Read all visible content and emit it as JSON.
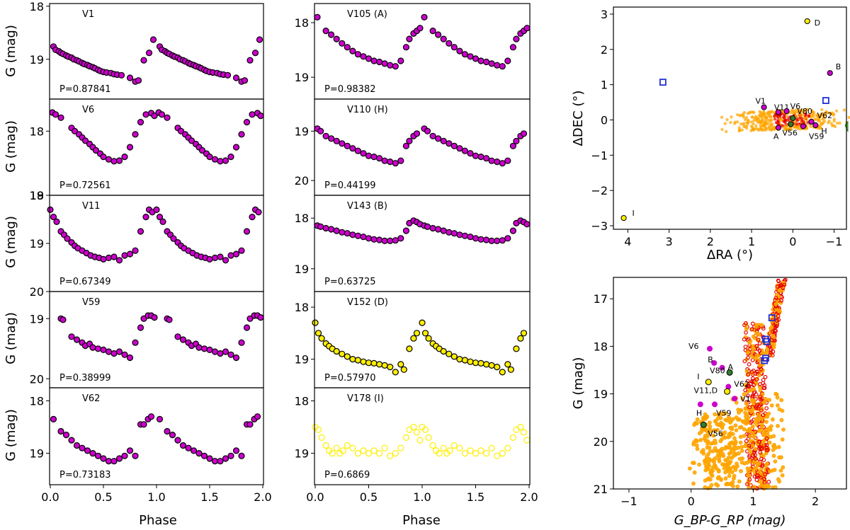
{
  "figure": {
    "y_label": "G (mag)",
    "phase_label": "Phase",
    "phase_ticks": [
      "0.0",
      "0.5",
      "1.0",
      "1.5",
      "2.0"
    ],
    "colors": {
      "member": "#cc00cc",
      "nonmember": "#ffee00",
      "nonmember_open": "#ffee00",
      "stroke": "#000000",
      "field": "#ffa500",
      "cluster": "#e60000",
      "candidate": "#1f2fd6",
      "green": "#2f7d2f"
    }
  },
  "chart_data": [
    {
      "type": "scatter",
      "panel": "light-curve",
      "name": "V1",
      "period_label": "P=0.87841",
      "color": "member",
      "ylim": [
        19.75,
        17.95
      ],
      "ytick_labels": [
        "18",
        "19"
      ],
      "x": [
        0.03,
        0.05,
        0.08,
        0.1,
        0.12,
        0.15,
        0.17,
        0.2,
        0.22,
        0.25,
        0.27,
        0.3,
        0.32,
        0.35,
        0.37,
        0.4,
        0.42,
        0.45,
        0.47,
        0.5,
        0.53,
        0.57,
        0.6,
        0.63,
        0.67,
        0.75,
        0.8,
        0.83,
        0.88,
        0.93,
        0.97
      ],
      "y": [
        18.76,
        18.82,
        18.85,
        18.88,
        18.9,
        18.93,
        18.95,
        18.97,
        19.0,
        19.02,
        19.04,
        19.07,
        19.09,
        19.11,
        19.13,
        19.15,
        19.17,
        19.2,
        19.22,
        19.24,
        19.25,
        19.26,
        19.28,
        19.29,
        19.3,
        19.35,
        19.42,
        19.4,
        19.02,
        18.88,
        18.63
      ]
    },
    {
      "type": "scatter",
      "panel": "light-curve",
      "name": "V6",
      "period_label": "P=0.72561",
      "color": "member",
      "ylim": [
        19.0,
        17.5
      ],
      "ytick_labels": [
        "18",
        "19"
      ],
      "x": [
        0.02,
        0.05,
        0.1,
        0.2,
        0.23,
        0.27,
        0.3,
        0.33,
        0.37,
        0.4,
        0.43,
        0.47,
        0.5,
        0.55,
        0.6,
        0.65,
        0.7,
        0.75,
        0.8,
        0.85,
        0.9,
        0.95,
        0.98
      ],
      "y": [
        17.71,
        17.74,
        17.79,
        17.95,
        18.0,
        18.05,
        18.1,
        18.15,
        18.2,
        18.25,
        18.3,
        18.35,
        18.4,
        18.44,
        18.47,
        18.46,
        18.4,
        18.25,
        18.05,
        17.86,
        17.74,
        17.72,
        17.76
      ]
    },
    {
      "type": "scatter",
      "panel": "light-curve",
      "name": "V11",
      "period_label": "P=0.67349",
      "color": "member",
      "ylim": [
        20.0,
        18.0
      ],
      "ytick_labels": [
        "18",
        "19",
        "20"
      ],
      "x": [
        0.0,
        0.03,
        0.06,
        0.1,
        0.13,
        0.16,
        0.2,
        0.23,
        0.26,
        0.3,
        0.34,
        0.38,
        0.42,
        0.46,
        0.5,
        0.55,
        0.6,
        0.65,
        0.7,
        0.75,
        0.8,
        0.85,
        0.9,
        0.93,
        0.96
      ],
      "y": [
        18.3,
        18.45,
        18.55,
        18.75,
        18.82,
        18.9,
        18.98,
        19.05,
        19.1,
        19.15,
        19.2,
        19.25,
        19.28,
        19.3,
        19.33,
        19.3,
        19.28,
        19.35,
        19.25,
        19.22,
        19.15,
        18.75,
        18.45,
        18.3,
        18.35
      ]
    },
    {
      "type": "scatter",
      "panel": "light-curve",
      "name": "V59",
      "period_label": "P=0.38999",
      "color": "member",
      "ylim": [
        20.15,
        18.55
      ],
      "ytick_labels": [
        "19",
        "20"
      ],
      "x": [
        0.1,
        0.12,
        0.2,
        0.25,
        0.3,
        0.33,
        0.37,
        0.4,
        0.45,
        0.5,
        0.55,
        0.6,
        0.65,
        0.7,
        0.75,
        0.8,
        0.85,
        0.88,
        0.92,
        0.95,
        0.98
      ],
      "y": [
        19.0,
        19.02,
        19.3,
        19.35,
        19.4,
        19.45,
        19.42,
        19.48,
        19.5,
        19.52,
        19.55,
        19.58,
        19.55,
        19.6,
        19.65,
        19.4,
        19.15,
        19.0,
        18.95,
        18.95,
        18.98
      ]
    },
    {
      "type": "scatter",
      "panel": "light-curve",
      "name": "V62",
      "period_label": "P=0.73183",
      "color": "member",
      "ylim": [
        19.6,
        17.75
      ],
      "ytick_labels": [
        "18",
        "19"
      ],
      "x": [
        0.03,
        0.1,
        0.15,
        0.2,
        0.25,
        0.3,
        0.35,
        0.4,
        0.45,
        0.5,
        0.55,
        0.6,
        0.65,
        0.7,
        0.75,
        0.8,
        0.85,
        0.88,
        0.92,
        0.95
      ],
      "y": [
        18.35,
        18.58,
        18.65,
        18.75,
        18.85,
        18.9,
        18.95,
        19.0,
        19.05,
        19.1,
        19.15,
        19.15,
        19.1,
        19.05,
        18.95,
        19.05,
        18.45,
        18.45,
        18.35,
        18.3
      ]
    },
    {
      "type": "scatter",
      "panel": "light-curve",
      "name": "V105 (A)",
      "period_label": "P=0.98382",
      "color": "member",
      "ylim": [
        19.4,
        17.65
      ],
      "ytick_labels": [
        "18",
        "19"
      ],
      "x": [
        0.02,
        0.1,
        0.15,
        0.2,
        0.25,
        0.3,
        0.35,
        0.4,
        0.45,
        0.5,
        0.55,
        0.6,
        0.65,
        0.7,
        0.75,
        0.8,
        0.85,
        0.88,
        0.92,
        0.95,
        0.98
      ],
      "y": [
        17.9,
        18.15,
        18.22,
        18.3,
        18.38,
        18.45,
        18.52,
        18.58,
        18.62,
        18.66,
        18.7,
        18.72,
        18.75,
        18.78,
        18.8,
        18.7,
        18.45,
        18.3,
        18.2,
        18.15,
        18.1
      ]
    },
    {
      "type": "scatter",
      "panel": "light-curve",
      "name": "V110 (H)",
      "period_label": "P=0.44199",
      "color": "member",
      "ylim": [
        20.3,
        18.35
      ],
      "ytick_labels": [
        "19",
        "20"
      ],
      "x": [
        0.02,
        0.05,
        0.1,
        0.15,
        0.2,
        0.25,
        0.3,
        0.35,
        0.4,
        0.45,
        0.5,
        0.55,
        0.6,
        0.65,
        0.7,
        0.75,
        0.8,
        0.85,
        0.88,
        0.92,
        0.95
      ],
      "y": [
        18.95,
        19.0,
        19.1,
        19.15,
        19.2,
        19.25,
        19.3,
        19.35,
        19.4,
        19.45,
        19.5,
        19.52,
        19.55,
        19.6,
        19.62,
        19.65,
        19.6,
        19.3,
        19.2,
        19.1,
        19.05
      ]
    },
    {
      "type": "scatter",
      "panel": "light-curve",
      "name": "V143 (B)",
      "period_label": "P=0.63725",
      "color": "member",
      "ylim": [
        19.45,
        17.55
      ],
      "ytick_labels": [
        "18",
        "19"
      ],
      "x": [
        0.02,
        0.05,
        0.1,
        0.15,
        0.2,
        0.25,
        0.3,
        0.35,
        0.4,
        0.45,
        0.5,
        0.55,
        0.6,
        0.65,
        0.7,
        0.75,
        0.8,
        0.85,
        0.88,
        0.92,
        0.95,
        0.98
      ],
      "y": [
        18.15,
        18.17,
        18.2,
        18.22,
        18.25,
        18.28,
        18.3,
        18.33,
        18.35,
        18.37,
        18.4,
        18.42,
        18.43,
        18.45,
        18.45,
        18.44,
        18.4,
        18.25,
        18.1,
        18.05,
        18.08,
        18.12
      ]
    },
    {
      "type": "scatter",
      "panel": "light-curve",
      "name": "V152 (D)",
      "period_label": "P=0.57970",
      "color": "nonmember",
      "ylim": [
        19.55,
        17.7
      ],
      "ytick_labels": [
        "18",
        "19"
      ],
      "x": [
        0.0,
        0.03,
        0.06,
        0.1,
        0.13,
        0.16,
        0.2,
        0.25,
        0.3,
        0.35,
        0.4,
        0.45,
        0.5,
        0.55,
        0.6,
        0.65,
        0.7,
        0.75,
        0.8,
        0.83,
        0.88,
        0.92,
        0.95
      ],
      "y": [
        18.3,
        18.5,
        18.6,
        18.7,
        18.75,
        18.8,
        18.85,
        18.9,
        18.95,
        19.0,
        19.02,
        19.05,
        19.07,
        19.08,
        19.1,
        19.12,
        19.15,
        19.25,
        19.1,
        19.2,
        18.8,
        18.6,
        18.5
      ]
    },
    {
      "type": "scatter",
      "panel": "light-curve",
      "name": "V178 (I)",
      "period_label": "P=0.6869",
      "color": "nonmember_open",
      "ylim": [
        19.6,
        17.75
      ],
      "ytick_labels": [
        "18",
        "19"
      ],
      "x": [
        0.0,
        0.03,
        0.06,
        0.1,
        0.13,
        0.16,
        0.2,
        0.23,
        0.26,
        0.3,
        0.35,
        0.4,
        0.45,
        0.5,
        0.55,
        0.6,
        0.65,
        0.7,
        0.75,
        0.8,
        0.85,
        0.88,
        0.92,
        0.95,
        0.98
      ],
      "y": [
        18.5,
        18.55,
        18.7,
        18.85,
        18.95,
        19.0,
        18.9,
        19.0,
        18.95,
        18.85,
        18.9,
        19.0,
        18.95,
        19.0,
        18.95,
        19.0,
        18.9,
        19.05,
        19.0,
        18.9,
        18.7,
        18.55,
        18.5,
        18.6,
        18.75
      ]
    },
    {
      "type": "scatter",
      "panel": "sky-map",
      "title": "",
      "xlabel": "ΔRA (°)",
      "ylabel": "ΔDEC (°)",
      "xlim": [
        4.35,
        -1.3
      ],
      "ylim": [
        -3.1,
        3.2
      ],
      "xtick_labels": [
        "4",
        "3",
        "2",
        "1",
        "0",
        "−1"
      ],
      "ytick_labels": [
        "−3",
        "−2",
        "−1",
        "0",
        "1",
        "2",
        "3"
      ],
      "labeled_stars": [
        {
          "label": "V1",
          "x": 0.7,
          "y": 0.36,
          "color": "member"
        },
        {
          "label": "V11",
          "x": 0.35,
          "y": 0.22,
          "color": "member"
        },
        {
          "label": "V6",
          "x": 0.15,
          "y": 0.25,
          "color": "member"
        },
        {
          "label": "V80",
          "x": 0.0,
          "y": 0.05,
          "color": "green"
        },
        {
          "label": "V62",
          "x": -0.45,
          "y": -0.05,
          "color": "member"
        },
        {
          "label": "A",
          "x": 0.35,
          "y": -0.22,
          "color": "member"
        },
        {
          "label": "V56",
          "x": 0.05,
          "y": -0.12,
          "color": "green"
        },
        {
          "label": "V59",
          "x": -0.25,
          "y": -0.18,
          "color": "member"
        },
        {
          "label": "H",
          "x": -0.55,
          "y": -0.15,
          "color": "member"
        },
        {
          "label": "B",
          "x": -0.9,
          "y": 1.33,
          "color": "member"
        },
        {
          "label": "D",
          "x": -0.35,
          "y": 2.8,
          "color": "nonmember"
        },
        {
          "label": "I",
          "x": 4.1,
          "y": -2.78,
          "color": "nonmember"
        }
      ],
      "candidates": [
        {
          "x": 3.15,
          "y": 1.07
        },
        {
          "x": -0.8,
          "y": 0.55
        }
      ]
    },
    {
      "type": "scatter",
      "panel": "cmd",
      "title": "",
      "xlabel": "G_BP-G_RP (mag)",
      "ylabel": "G (mag)",
      "xlim": [
        -1.25,
        2.5
      ],
      "ylim": [
        21.0,
        16.55
      ],
      "xtick_labels": [
        "−1",
        "0",
        "1",
        "2"
      ],
      "ytick_labels": [
        "17",
        "18",
        "19",
        "20",
        "21"
      ],
      "labeled_stars": [
        {
          "label": "V6",
          "x": 0.3,
          "y": 18.05,
          "color": "member"
        },
        {
          "label": "B",
          "x": 0.37,
          "y": 18.35,
          "color": "member"
        },
        {
          "label": "A",
          "x": 0.5,
          "y": 18.45,
          "color": "member"
        },
        {
          "label": "V80",
          "x": 0.62,
          "y": 18.55,
          "color": "green"
        },
        {
          "label": "I",
          "x": 0.28,
          "y": 18.75,
          "color": "nonmember"
        },
        {
          "label": "V62",
          "x": 0.6,
          "y": 18.85,
          "color": "member"
        },
        {
          "label": "V11,D",
          "x": 0.58,
          "y": 18.95,
          "color": "nonmember"
        },
        {
          "label": "V1",
          "x": 0.7,
          "y": 19.1,
          "color": "member"
        },
        {
          "label": "H",
          "x": 0.15,
          "y": 19.22,
          "color": "member"
        },
        {
          "label": "V59",
          "x": 0.38,
          "y": 19.22,
          "color": "member"
        },
        {
          "label": "V56",
          "x": 0.2,
          "y": 19.65,
          "color": "green"
        }
      ],
      "candidates": [
        {
          "x": 1.3,
          "y": 17.4
        },
        {
          "x": 1.2,
          "y": 17.85
        },
        {
          "x": 1.22,
          "y": 17.9
        },
        {
          "x": 1.2,
          "y": 18.25
        },
        {
          "x": 1.18,
          "y": 18.3
        }
      ]
    }
  ]
}
